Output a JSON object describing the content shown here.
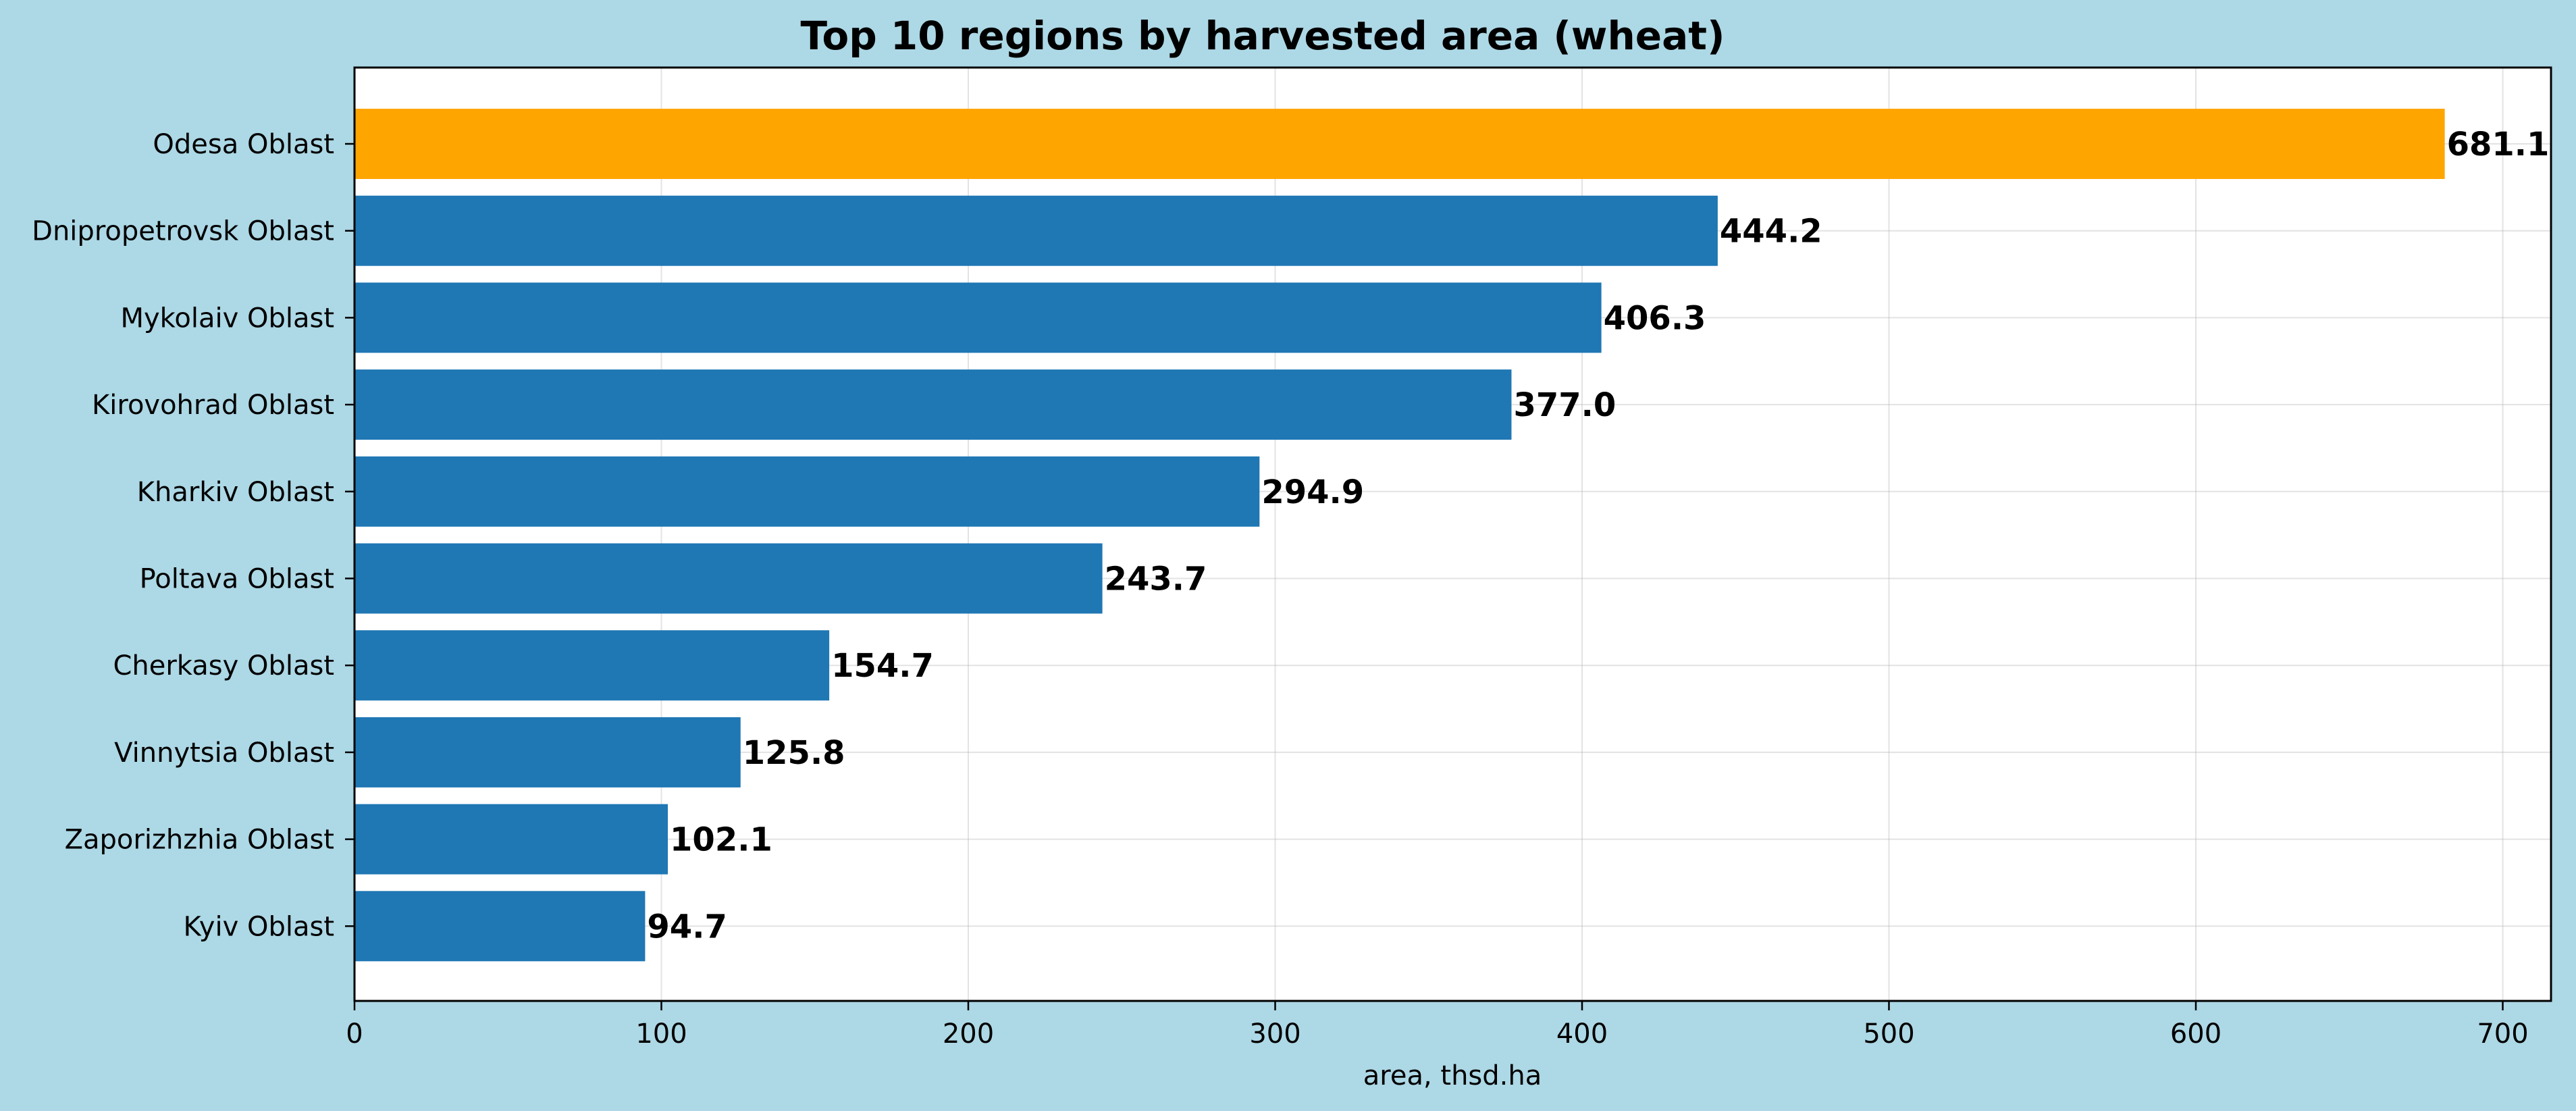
{
  "chart_data": {
    "type": "bar",
    "orientation": "horizontal",
    "title": "Top 10 regions by harvested area (wheat)",
    "xlabel": "area, thsd.ha",
    "ylabel": "",
    "categories": [
      "Odesa Oblast",
      "Dnipropetrovsk Oblast",
      "Mykolaiv Oblast",
      "Kirovohrad Oblast",
      "Kharkiv Oblast",
      "Poltava Oblast",
      "Cherkasy Oblast",
      "Vinnytsia Oblast",
      "Zaporizhzhia Oblast",
      "Kyiv Oblast"
    ],
    "values": [
      681.1,
      444.2,
      406.3,
      377.0,
      294.9,
      243.7,
      154.7,
      125.8,
      102.1,
      94.7
    ],
    "data_labels": [
      "681.1",
      "444.2",
      "406.3",
      "377.0",
      "294.9",
      "243.7",
      "154.7",
      "125.8",
      "102.1",
      "94.7"
    ],
    "xlim": [
      0,
      715
    ],
    "xticks": [
      0,
      100,
      200,
      300,
      400,
      500,
      600,
      700
    ],
    "grid": true,
    "highlight_index": 0,
    "colors": {
      "background": "#ADD8E6",
      "plot_background": "#FFFFFF",
      "bar": "#1F77B4",
      "highlight": "#FFA500"
    }
  }
}
